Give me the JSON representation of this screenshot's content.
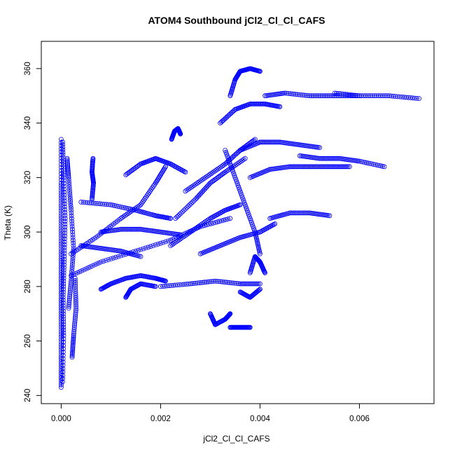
{
  "chart_data": {
    "type": "scatter",
    "title": "ATOM4 Southbound jCl2_Cl_Cl_CAFS",
    "xlabel": "jCl2_Cl_Cl_CAFS",
    "ylabel": "Theta (K)",
    "xlim": [
      -0.0004,
      0.0075
    ],
    "ylim": [
      237,
      370
    ],
    "xticks": [
      "0.000",
      "0.002",
      "0.004",
      "0.006"
    ],
    "xtick_values": [
      0,
      0.002,
      0.004,
      0.006
    ],
    "yticks": [
      "240",
      "260",
      "280",
      "300",
      "320",
      "340",
      "360"
    ],
    "ytick_values": [
      240,
      260,
      280,
      300,
      320,
      340,
      360
    ],
    "grid": false,
    "colors": {
      "series": "#0000ff",
      "axis": "#000000",
      "background": "#ffffff"
    },
    "series": [
      {
        "marker": "open-circle-with-line",
        "tracks": [
          [
            [
              0.0,
              243
            ],
            [
              0.0,
              255
            ],
            [
              0.0,
              268
            ],
            [
              0.0,
              280
            ],
            [
              0.0,
              292
            ],
            [
              0.0,
              305
            ],
            [
              0.0,
              318
            ],
            [
              0.0,
              334
            ]
          ],
          [
            [
              3e-05,
              245
            ],
            [
              5e-05,
              262
            ],
            [
              4e-05,
              276
            ],
            [
              6e-05,
              290
            ],
            [
              8e-05,
              305
            ],
            [
              5e-05,
              320
            ],
            [
              3e-05,
              333
            ]
          ],
          [
            [
              0.00015,
              272
            ],
            [
              0.0002,
              282
            ],
            [
              0.00025,
              294
            ],
            [
              0.0002,
              308
            ],
            [
              0.00015,
              320
            ],
            [
              0.00012,
              327
            ]
          ],
          [
            [
              0.00022,
              254
            ],
            [
              0.00025,
              262
            ],
            [
              0.0003,
              272
            ],
            [
              0.00028,
              283
            ]
          ],
          [
            [
              0.00062,
              312
            ],
            [
              0.00065,
              318
            ],
            [
              0.00062,
              322
            ],
            [
              0.00064,
              327
            ]
          ],
          [
            [
              0.0008,
              279
            ],
            [
              0.001,
              281
            ],
            [
              0.0013,
              283
            ],
            [
              0.0016,
              284
            ],
            [
              0.0019,
              283
            ],
            [
              0.0021,
              282
            ]
          ],
          [
            [
              0.0002,
              284
            ],
            [
              0.0008,
              289
            ],
            [
              0.0015,
              293
            ],
            [
              0.0022,
              297
            ],
            [
              0.0028,
              302
            ],
            [
              0.0034,
              305
            ]
          ],
          [
            [
              0.0002,
              292
            ],
            [
              0.0007,
              298
            ],
            [
              0.0012,
              305
            ],
            [
              0.0016,
              310
            ],
            [
              0.0019,
              318
            ],
            [
              0.0021,
              324
            ]
          ],
          [
            [
              0.0004,
              311
            ],
            [
              0.001,
              310
            ],
            [
              0.0015,
              308
            ],
            [
              0.0019,
              306
            ],
            [
              0.0022,
              305
            ]
          ],
          [
            [
              0.0013,
              321
            ],
            [
              0.0016,
              325
            ],
            [
              0.0019,
              327
            ],
            [
              0.0022,
              325
            ],
            [
              0.0025,
              322
            ]
          ],
          [
            [
              0.002,
              280
            ],
            [
              0.0026,
              281
            ],
            [
              0.0031,
              282
            ],
            [
              0.0036,
              281
            ],
            [
              0.004,
              281
            ]
          ],
          [
            [
              0.0022,
              295
            ],
            [
              0.0026,
              300
            ],
            [
              0.003,
              305
            ],
            [
              0.0033,
              308
            ],
            [
              0.0036,
              310
            ]
          ],
          [
            [
              0.0023,
              305
            ],
            [
              0.0027,
              312
            ],
            [
              0.003,
              318
            ],
            [
              0.0033,
              322
            ],
            [
              0.0037,
              327
            ]
          ],
          [
            [
              0.00222,
              334
            ],
            [
              0.00228,
              337
            ],
            [
              0.00235,
              338
            ],
            [
              0.0024,
              336
            ]
          ],
          [
            [
              0.0025,
              315
            ],
            [
              0.0029,
              320
            ],
            [
              0.0033,
              325
            ],
            [
              0.0036,
              330
            ],
            [
              0.0039,
              334
            ]
          ],
          [
            [
              0.0028,
              292
            ],
            [
              0.0032,
              295
            ],
            [
              0.0036,
              298
            ],
            [
              0.004,
              300
            ],
            [
              0.0043,
              303
            ]
          ],
          [
            [
              0.003,
              270
            ],
            [
              0.0031,
              266
            ],
            [
              0.0033,
              268
            ],
            [
              0.0034,
              270
            ]
          ],
          [
            [
              0.0034,
              265
            ],
            [
              0.0036,
              265
            ],
            [
              0.0038,
              265
            ]
          ],
          [
            [
              0.0034,
              350
            ],
            [
              0.0035,
              356
            ],
            [
              0.0036,
              359
            ],
            [
              0.0038,
              360
            ],
            [
              0.004,
              359
            ]
          ],
          [
            [
              0.0032,
              340
            ],
            [
              0.0035,
              345
            ],
            [
              0.0038,
              347
            ],
            [
              0.0041,
              347
            ],
            [
              0.0044,
              346
            ]
          ],
          [
            [
              0.0036,
              330
            ],
            [
              0.004,
              333
            ],
            [
              0.0044,
              333
            ],
            [
              0.0048,
              332
            ],
            [
              0.0052,
              331
            ]
          ],
          [
            [
              0.0038,
              320
            ],
            [
              0.0042,
              323
            ],
            [
              0.0046,
              324
            ],
            [
              0.005,
              324
            ],
            [
              0.0054,
              324
            ],
            [
              0.0058,
              324
            ]
          ],
          [
            [
              0.0041,
              350
            ],
            [
              0.0045,
              351
            ],
            [
              0.005,
              350
            ],
            [
              0.0055,
              350
            ],
            [
              0.006,
              350
            ]
          ],
          [
            [
              0.0042,
              305
            ],
            [
              0.0046,
              307
            ],
            [
              0.005,
              307
            ],
            [
              0.0054,
              306
            ]
          ],
          [
            [
              0.0038,
              285
            ],
            [
              0.0039,
              291
            ],
            [
              0.004,
              289
            ],
            [
              0.0041,
              285
            ]
          ],
          [
            [
              0.0036,
              278
            ],
            [
              0.0038,
              276
            ],
            [
              0.004,
              279
            ]
          ],
          [
            [
              0.0048,
              328
            ],
            [
              0.0052,
              327
            ],
            [
              0.0056,
              327
            ],
            [
              0.006,
              326
            ],
            [
              0.0065,
              324
            ]
          ],
          [
            [
              0.0055,
              351
            ],
            [
              0.006,
              350
            ],
            [
              0.0066,
              350
            ],
            [
              0.0072,
              349
            ]
          ],
          [
            [
              0.0013,
              276
            ],
            [
              0.0014,
              279
            ],
            [
              0.0016,
              281
            ],
            [
              0.0019,
              280
            ]
          ],
          [
            [
              0.0008,
              300
            ],
            [
              0.0012,
              301
            ],
            [
              0.0016,
              301
            ],
            [
              0.002,
              300
            ],
            [
              0.0024,
              299
            ]
          ],
          [
            [
              0.0004,
              295
            ],
            [
              0.0008,
              294
            ],
            [
              0.0012,
              293
            ],
            [
              0.0016,
              291
            ]
          ],
          [
            [
              0.0033,
              330
            ],
            [
              0.0035,
              320
            ],
            [
              0.0037,
              310
            ],
            [
              0.0039,
              300
            ],
            [
              0.004,
              292
            ]
          ]
        ]
      }
    ]
  }
}
